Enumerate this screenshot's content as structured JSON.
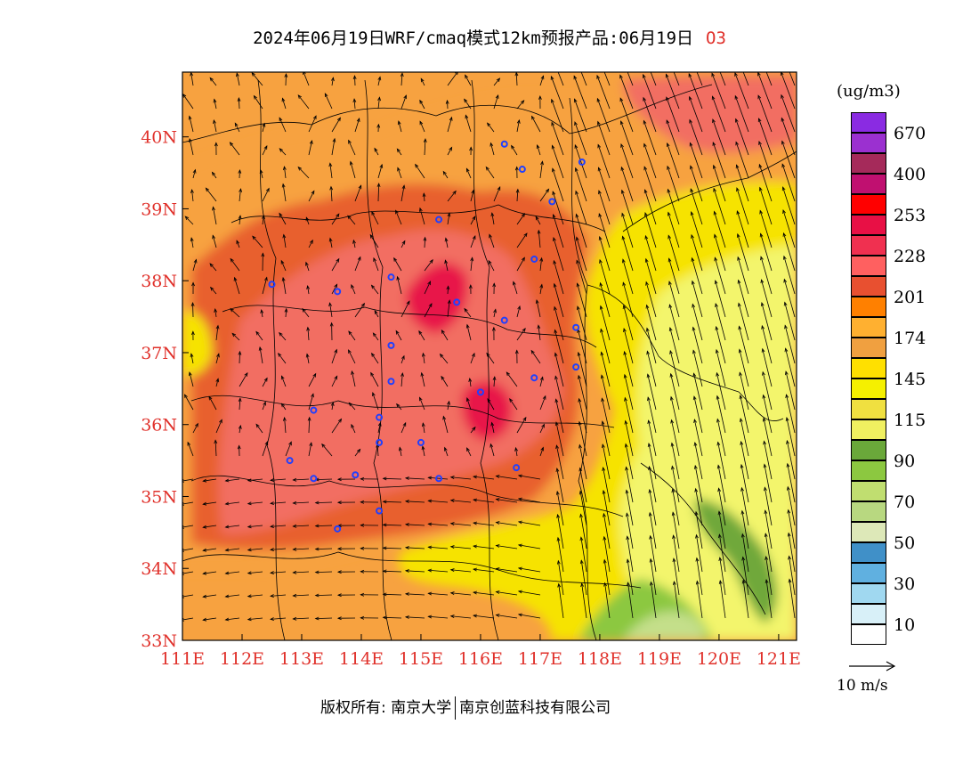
{
  "title": {
    "text": "2024年06月19日WRF/cmaq模式12km预报产品:06月19日",
    "species": "O3"
  },
  "axes": {
    "lon_ticks": [
      "111E",
      "112E",
      "113E",
      "114E",
      "115E",
      "116E",
      "117E",
      "118E",
      "119E",
      "120E",
      "121E"
    ],
    "lat_ticks": [
      "33N",
      "34N",
      "35N",
      "36N",
      "37N",
      "38N",
      "39N",
      "40N"
    ],
    "lon_range": [
      111,
      121.3
    ],
    "lat_range": [
      33,
      40.9
    ],
    "tick_color": "#e0302a"
  },
  "legend": {
    "unit": "(ug/m3)",
    "swatches": [
      {
        "color": "#8a2be2"
      },
      {
        "color": "#9b30d0"
      },
      {
        "color": "#a52a5a"
      },
      {
        "color": "#c01070"
      },
      {
        "color": "#ff0000"
      },
      {
        "color": "#e81045"
      },
      {
        "color": "#f03050"
      },
      {
        "color": "#ff6060"
      },
      {
        "color": "#e85030"
      },
      {
        "color": "#ff8000"
      },
      {
        "color": "#ffb030"
      },
      {
        "color": "#f0a040"
      },
      {
        "color": "#ffe000"
      },
      {
        "color": "#f5f000"
      },
      {
        "color": "#f0e040"
      },
      {
        "color": "#f0f060"
      },
      {
        "color": "#6aa83a"
      },
      {
        "color": "#8cc840"
      },
      {
        "color": "#c0de70"
      },
      {
        "color": "#b8d880"
      },
      {
        "color": "#dde8b8"
      },
      {
        "color": "#4090c8"
      },
      {
        "color": "#60b0e0"
      },
      {
        "color": "#a0d8f0"
      },
      {
        "color": "#d8f0f8"
      },
      {
        "color": "#ffffff"
      }
    ],
    "labels": [
      "670",
      "400",
      "253",
      "228",
      "201",
      "174",
      "145",
      "115",
      "90",
      "70",
      "50",
      "30",
      "10"
    ]
  },
  "wind_reference": {
    "label": "10 m/s"
  },
  "footer": {
    "left": "版权所有: 南京大学",
    "right": "南京创蓝科技有限公司"
  },
  "colors": {
    "background_fill": "#f7a240",
    "high_ozone": "#f26e62",
    "moderate_orange": "#e8602f",
    "peak_red": "#e8174a",
    "yellow": "#f6e300",
    "light_yellow": "#f3f56c",
    "green": "#6fa83b",
    "light_green": "#c4df8a",
    "station_marker": "#2040ff",
    "boundary": "#000000"
  }
}
